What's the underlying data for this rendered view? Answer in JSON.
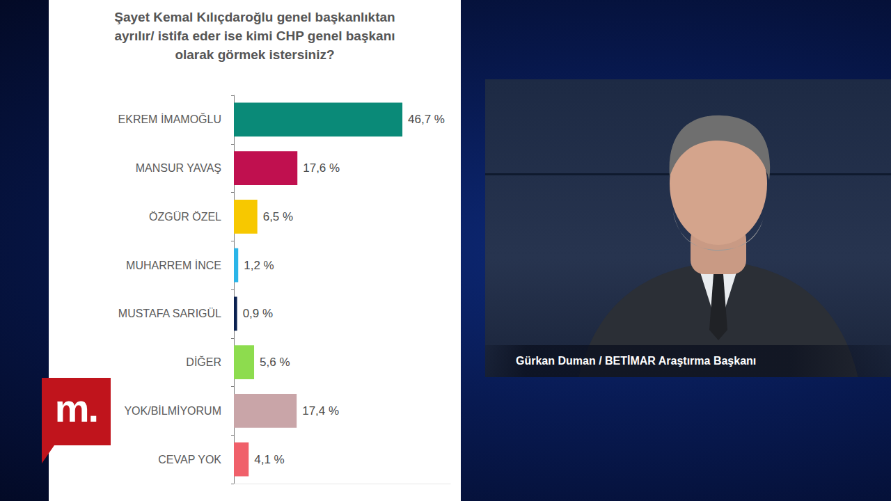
{
  "chart_data": {
    "type": "bar",
    "orientation": "horizontal",
    "title": "Şayet Kemal Kılıçdaroğlu genel başkanlıktan\nayrılır/ istifa eder ise kimi CHP genel başkanı\nolarak görmek istersiniz?",
    "categories": [
      "EKREM İMAMOĞLU",
      "MANSUR YAVAŞ",
      "ÖZGÜR ÖZEL",
      "MUHARREM İNCE",
      "MUSTAFA SARIGÜL",
      "DİĞER",
      "YOK/BİLMİYORUM",
      "CEVAP YOK"
    ],
    "values": [
      46.7,
      17.6,
      6.5,
      1.2,
      0.9,
      5.6,
      17.4,
      4.1
    ],
    "value_labels": [
      "46,7 %",
      "17,6 %",
      "6,5 %",
      "1,2 %",
      "0,9 %",
      "5,6 %",
      "17,4 %",
      "4,1 %"
    ],
    "colors": [
      "#0a8a78",
      "#c0104f",
      "#f7c800",
      "#2bb5e8",
      "#0b2150",
      "#8ddc4e",
      "#c9a5a8",
      "#f0606a"
    ],
    "xlim": [
      0,
      60
    ],
    "xticks": [],
    "grid": false,
    "data_labels": true,
    "tick_labels": "y"
  },
  "caption": "Gürkan Duman / BETİMAR Araştırma Başkanı",
  "logo": "m."
}
